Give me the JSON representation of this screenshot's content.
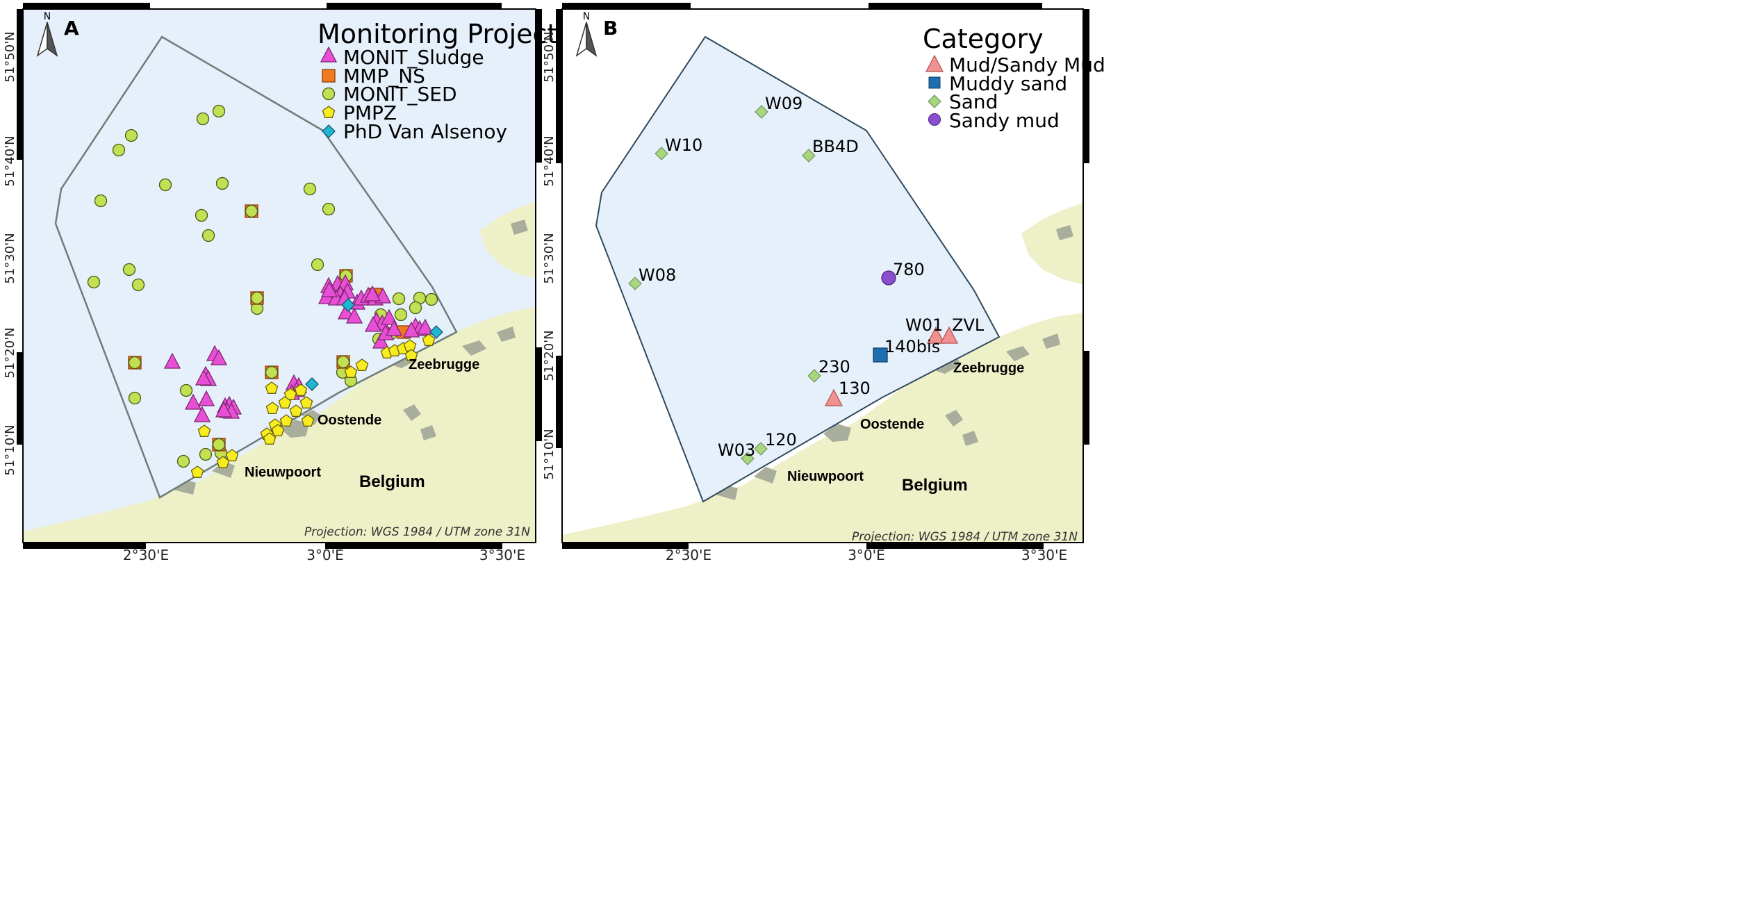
{
  "panel_a": {
    "letter": "A",
    "legend_title": "Monitoring Project",
    "legend_items": [
      "MONIT_Sludge",
      "MMP_NS",
      "MONIT_SED",
      "PMPZ",
      "PhD Van Alsenoy"
    ],
    "projection": "Projection: WGS 1984 / UTM zone 31N",
    "towns": [
      "Zeebrugge",
      "Oostende",
      "Nieuwpoort"
    ],
    "country": "Belgium",
    "lat_ticks": [
      "51°50'N",
      "51°40'N",
      "51°30'N",
      "51°20'N",
      "51°10'N"
    ],
    "lon_ticks": [
      "2°30'E",
      "3°0'E",
      "3°30'E"
    ],
    "north": "N"
  },
  "panel_b": {
    "letter": "B",
    "legend_title": "Category",
    "legend_items": [
      "Mud/Sandy Mud",
      "Muddy sand",
      "Sand",
      "Sandy mud"
    ],
    "projection": "Projection: WGS 1984 / UTM zone 31N",
    "towns": [
      "Zeebrugge",
      "Oostende",
      "Nieuwpoort"
    ],
    "country": "Belgium",
    "lat_ticks": [
      "51°50'N",
      "51°40'N",
      "51°30'N",
      "51°20'N",
      "51°10'N"
    ],
    "lon_ticks": [
      "2°30'E",
      "3°0'E",
      "3°30'E"
    ],
    "north": "N",
    "stations": [
      {
        "name": "W09",
        "cat": "Sand"
      },
      {
        "name": "W10",
        "cat": "Sand"
      },
      {
        "name": "BB4D",
        "cat": "Sand"
      },
      {
        "name": "W08",
        "cat": "Sand"
      },
      {
        "name": "780",
        "cat": "Sandy mud"
      },
      {
        "name": "W01",
        "cat": "Mud/Sandy Mud"
      },
      {
        "name": "ZVL",
        "cat": "Mud/Sandy Mud"
      },
      {
        "name": "140bis",
        "cat": "Muddy sand"
      },
      {
        "name": "230",
        "cat": "Sand"
      },
      {
        "name": "130",
        "cat": "Mud/Sandy Mud"
      },
      {
        "name": "120",
        "cat": "Sand"
      },
      {
        "name": "W03",
        "cat": "Sand"
      }
    ]
  },
  "colors": {
    "sea": "#e6f0fa",
    "land": "#eef0c8",
    "urban": "#a8ad9c",
    "sludge": "#e84fd4",
    "mmp": "#f07a20",
    "sed": "#c2e052",
    "pmpz": "#f6ec1e",
    "phd": "#22b6d2",
    "mud": "#f19090",
    "muddy_sand": "#1f6fb0",
    "sand": "#a6d67e",
    "sandy_mud": "#8a4fcc"
  }
}
